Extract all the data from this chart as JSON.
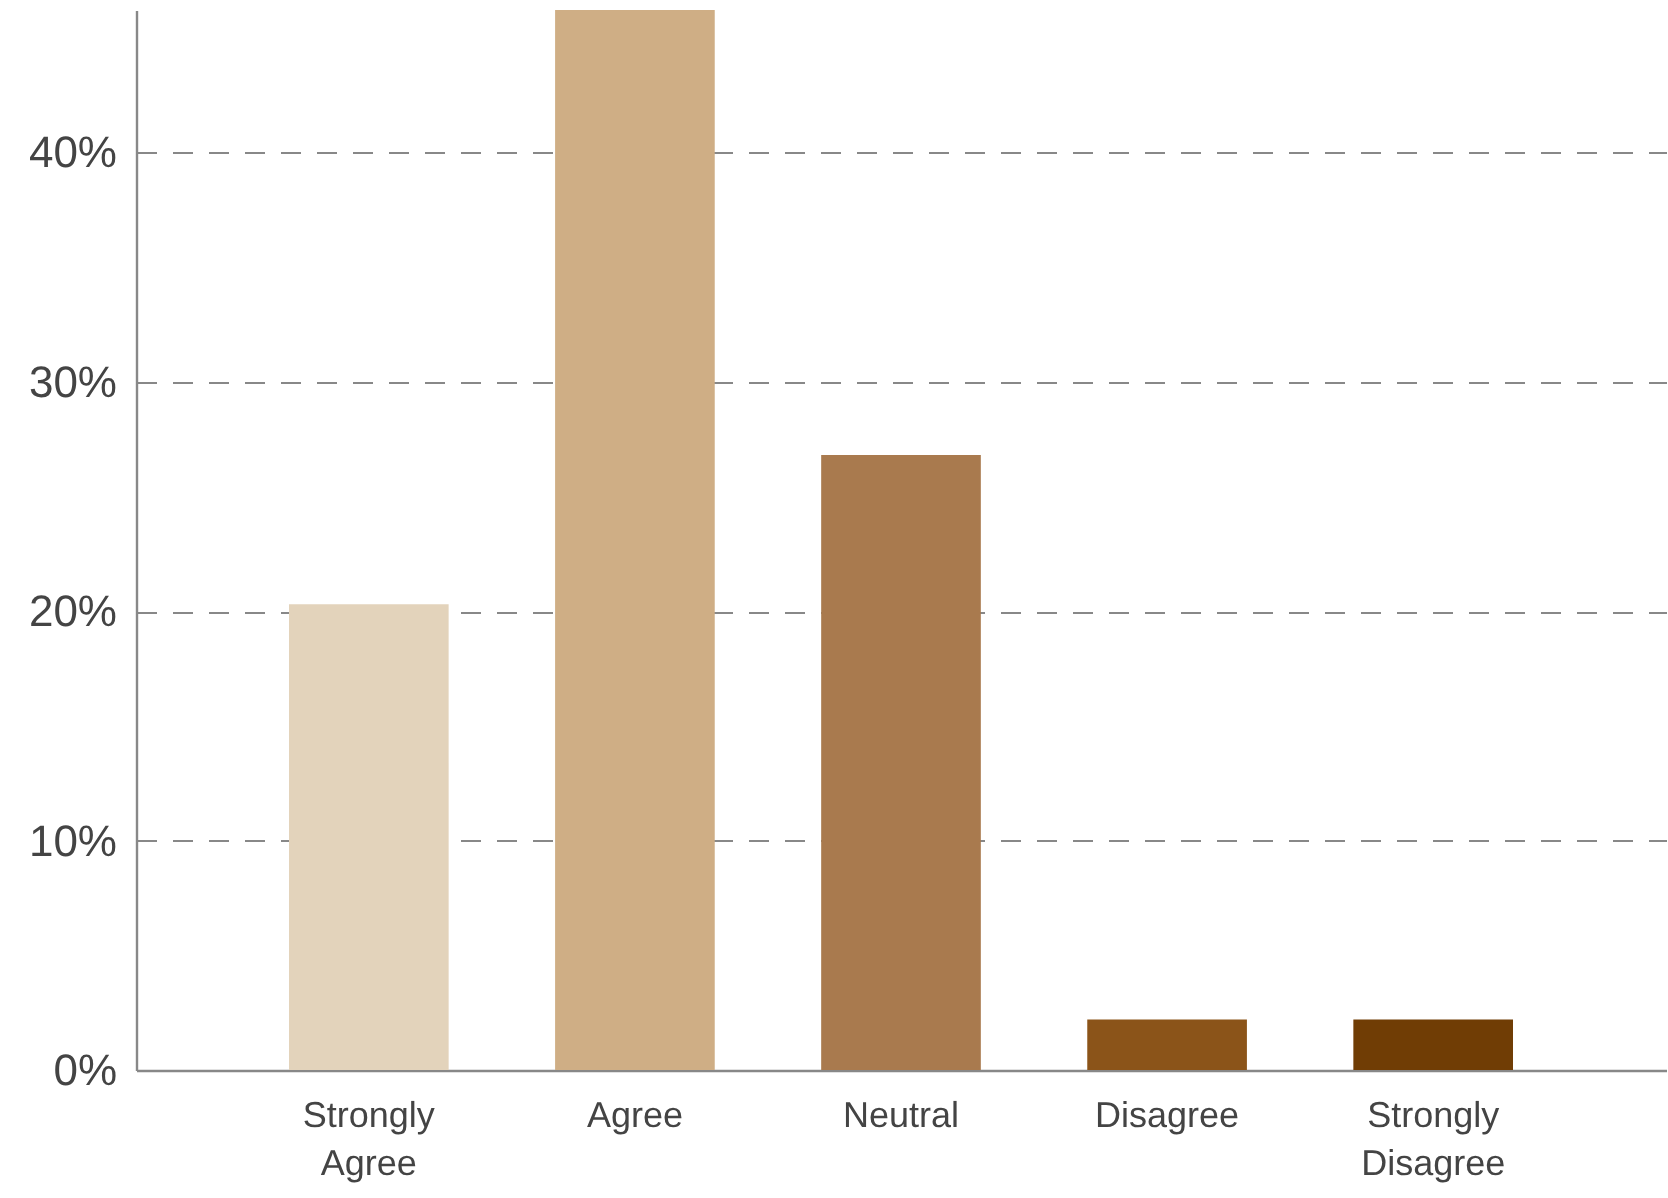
{
  "chart_data": {
    "type": "bar",
    "categories": [
      "Strongly Agree",
      "Agree",
      "Neutral",
      "Disagree",
      "Strongly Disagree"
    ],
    "values": [
      20.3,
      46.2,
      26.8,
      2.2,
      2.2
    ],
    "colors": [
      "#e3d3bb",
      "#cfae85",
      "#a97a4e",
      "#8b5419",
      "#703d05"
    ],
    "ylim": [
      0,
      46.2
    ],
    "yticks": [
      {
        "value": 0,
        "label": "0%"
      },
      {
        "value": 10,
        "label": "10%"
      },
      {
        "value": 20,
        "label": "20%"
      },
      {
        "value": 30,
        "label": "30%"
      },
      {
        "value": 40,
        "label": "40%"
      }
    ],
    "grid": "y"
  }
}
